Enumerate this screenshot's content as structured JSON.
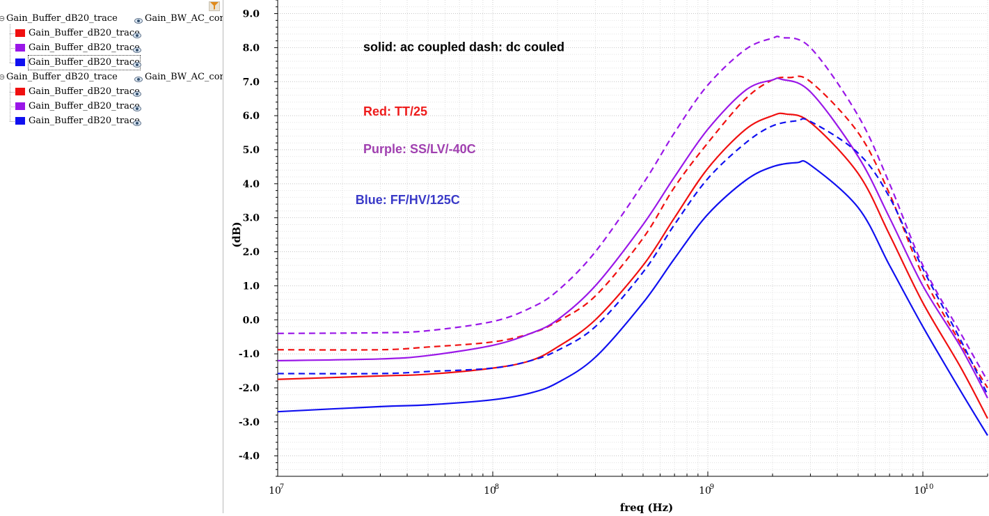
{
  "tree": {
    "groups": [
      {
        "name": "Gain_Buffer_dB20_trace",
        "column": "Gain_BW_AC_conf",
        "children": [
          {
            "name": "Gain_Buffer_dB20_trace",
            "color": "#f01010"
          },
          {
            "name": "Gain_Buffer_dB20_trace",
            "color": "#9a17e8"
          },
          {
            "name": "Gain_Buffer_dB20_trace",
            "color": "#1010f0",
            "selected": true
          }
        ]
      },
      {
        "name": "Gain_Buffer_dB20_trace",
        "column": "Gain_BW_AC_conf",
        "children": [
          {
            "name": "Gain_Buffer_dB20_trace",
            "color": "#f01010"
          },
          {
            "name": "Gain_Buffer_dB20_trace",
            "color": "#9a17e8"
          },
          {
            "name": "Gain_Buffer_dB20_trace",
            "color": "#1010f0"
          }
        ]
      }
    ],
    "icons": {
      "expand": "minus-expander-icon",
      "eye": "eye-icon",
      "filter": "filter-icon"
    }
  },
  "chart_data": {
    "type": "line",
    "xlabel": "freq (Hz)",
    "ylabel": "(dB)",
    "xscale": "log",
    "xlim": [
      10000000,
      20000000000
    ],
    "ylim": [
      -4.6,
      9.4
    ],
    "xticks": [
      {
        "value": 10000000,
        "base": "10",
        "exp": "7"
      },
      {
        "value": 100000000,
        "base": "10",
        "exp": "8"
      },
      {
        "value": 1000000000,
        "base": "10",
        "exp": "9"
      },
      {
        "value": 10000000000,
        "base": "10",
        "exp": "10"
      }
    ],
    "yticks": [
      "-4.0",
      "-3.0",
      "-2.0",
      "-1.0",
      "0.0",
      "1.0",
      "2.0",
      "3.0",
      "4.0",
      "5.0",
      "6.0",
      "7.0",
      "8.0",
      "9.0"
    ],
    "grid": true,
    "annotations": [
      {
        "text": "solid: ac coupled  dash: dc couled",
        "color": "#000000",
        "x": 25000000,
        "y": 7.9
      },
      {
        "text": "Red: TT/25",
        "color": "#ee1c1c",
        "x": 25000000,
        "y": 6.0
      },
      {
        "text": "Purple: SS/LV/-40C",
        "color": "#a040b0",
        "x": 25000000,
        "y": 4.9
      },
      {
        "text": "Blue: FF/HV/125C",
        "color": "#3a3ac8",
        "x": 23000000,
        "y": 3.4
      }
    ],
    "series": [
      {
        "color": "#f01010",
        "dash": false,
        "x": [
          10000000,
          30000000,
          50000000,
          100000000,
          150000000,
          200000000,
          300000000,
          500000000,
          700000000,
          1000000000,
          1500000000,
          2000000000,
          2300000000,
          3000000000,
          5000000000,
          7000000000,
          10000000000,
          15000000000,
          20000000000
        ],
        "y": [
          -1.75,
          -1.65,
          -1.6,
          -1.42,
          -1.2,
          -0.8,
          0.0,
          1.6,
          3.0,
          4.45,
          5.6,
          6.0,
          6.05,
          5.8,
          4.3,
          2.5,
          0.5,
          -1.4,
          -2.9
        ]
      },
      {
        "color": "#f01010",
        "dash": true,
        "x": [
          10000000,
          30000000,
          50000000,
          100000000,
          150000000,
          200000000,
          300000000,
          500000000,
          700000000,
          1000000000,
          1500000000,
          2000000000,
          2400000000,
          3000000000,
          5000000000,
          7000000000,
          10000000000,
          15000000000,
          20000000000
        ],
        "y": [
          -0.88,
          -0.88,
          -0.8,
          -0.65,
          -0.4,
          -0.05,
          0.7,
          2.4,
          3.9,
          5.2,
          6.5,
          7.05,
          7.12,
          7.0,
          5.5,
          3.7,
          1.3,
          -0.7,
          -2.0
        ]
      },
      {
        "color": "#9a17e8",
        "dash": false,
        "x": [
          10000000,
          30000000,
          50000000,
          100000000,
          150000000,
          200000000,
          300000000,
          500000000,
          700000000,
          1000000000,
          1500000000,
          2000000000,
          2200000000,
          3000000000,
          5000000000,
          7000000000,
          10000000000,
          15000000000,
          20000000000
        ],
        "y": [
          -1.2,
          -1.15,
          -1.05,
          -0.75,
          -0.4,
          0.0,
          1.0,
          2.8,
          4.2,
          5.6,
          6.75,
          7.05,
          7.07,
          6.7,
          4.8,
          3.0,
          1.0,
          -0.8,
          -2.3
        ]
      },
      {
        "color": "#9a17e8",
        "dash": true,
        "x": [
          10000000,
          30000000,
          50000000,
          100000000,
          150000000,
          200000000,
          300000000,
          500000000,
          700000000,
          1000000000,
          1500000000,
          2000000000,
          2200000000,
          3000000000,
          5000000000,
          7000000000,
          10000000000,
          15000000000,
          20000000000
        ],
        "y": [
          -0.4,
          -0.38,
          -0.32,
          -0.05,
          0.35,
          0.85,
          2.0,
          4.0,
          5.5,
          6.9,
          7.95,
          8.28,
          8.3,
          8.0,
          6.0,
          4.0,
          1.6,
          -0.4,
          -1.8
        ]
      },
      {
        "color": "#1010f0",
        "dash": false,
        "x": [
          10000000,
          30000000,
          50000000,
          100000000,
          150000000,
          200000000,
          300000000,
          500000000,
          700000000,
          1000000000,
          1500000000,
          2000000000,
          2600000000,
          3000000000,
          5000000000,
          7000000000,
          10000000000,
          15000000000,
          20000000000
        ],
        "y": [
          -2.7,
          -2.55,
          -2.5,
          -2.35,
          -2.15,
          -1.85,
          -1.1,
          0.5,
          1.8,
          3.1,
          4.1,
          4.5,
          4.62,
          4.55,
          3.3,
          1.6,
          -0.2,
          -2.1,
          -3.4
        ]
      },
      {
        "color": "#1010f0",
        "dash": true,
        "x": [
          10000000,
          30000000,
          50000000,
          100000000,
          150000000,
          200000000,
          300000000,
          500000000,
          700000000,
          1000000000,
          1500000000,
          2000000000,
          2600000000,
          3000000000,
          5000000000,
          7000000000,
          10000000000,
          15000000000,
          20000000000
        ],
        "y": [
          -1.58,
          -1.58,
          -1.52,
          -1.42,
          -1.2,
          -0.9,
          -0.2,
          1.4,
          2.8,
          4.15,
          5.2,
          5.7,
          5.85,
          5.83,
          4.9,
          3.6,
          1.5,
          -0.6,
          -2.2
        ]
      }
    ]
  }
}
